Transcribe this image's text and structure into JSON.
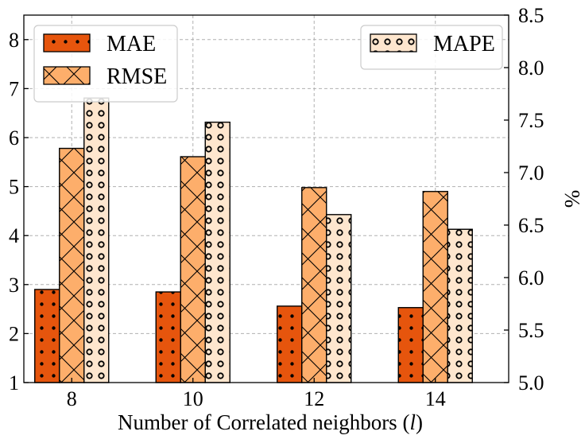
{
  "chart_data": {
    "type": "bar",
    "categories": [
      "8",
      "10",
      "12",
      "14"
    ],
    "series": [
      {
        "name": "MAE",
        "axis": "left",
        "color": "#e6550d",
        "pattern": "dots",
        "values": [
          2.9,
          2.85,
          2.56,
          2.53
        ]
      },
      {
        "name": "RMSE",
        "axis": "left",
        "color": "#fdae6b",
        "pattern": "crosshatch",
        "values": [
          5.78,
          5.61,
          4.98,
          4.9
        ]
      },
      {
        "name": "MAPE",
        "axis": "right",
        "color": "#fee6ce",
        "pattern": "circles",
        "values": [
          7.71,
          7.48,
          6.6,
          6.46
        ]
      }
    ],
    "xlabel_prefix": "Number of Correlated neighbors (",
    "xlabel_var": "l",
    "xlabel_suffix": ")",
    "ylabel_left": "",
    "ylabel_right": "%",
    "ylim_left": [
      1,
      8.5
    ],
    "ylim_right": [
      5.0,
      8.5
    ],
    "yticks_left": [
      "1",
      "2",
      "3",
      "4",
      "5",
      "6",
      "7",
      "8"
    ],
    "yticks_right": [
      "5.0",
      "5.5",
      "6.0",
      "6.5",
      "7.0",
      "7.5",
      "8.0",
      "8.5"
    ],
    "grid": true,
    "legend_left": {
      "placement": "top-left",
      "entries": [
        "MAE",
        "RMSE"
      ]
    },
    "legend_right": {
      "placement": "top-right",
      "entries": [
        "MAPE"
      ]
    }
  }
}
